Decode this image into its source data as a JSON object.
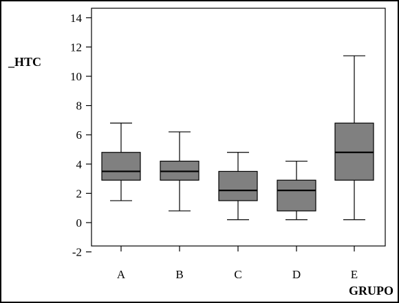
{
  "chart_data": {
    "type": "boxplot",
    "ylabel": "_HTC",
    "xlabel": "GRUPO",
    "ylim": [
      -2,
      14
    ],
    "yticks": [
      -2,
      0,
      2,
      4,
      6,
      8,
      10,
      12,
      14
    ],
    "categories": [
      "A",
      "B",
      "C",
      "D",
      "E"
    ],
    "boxes": [
      {
        "category": "A",
        "min": 1.5,
        "q1": 2.9,
        "median": 3.5,
        "q3": 4.8,
        "max": 6.8
      },
      {
        "category": "B",
        "min": 0.8,
        "q1": 2.9,
        "median": 3.5,
        "q3": 4.2,
        "max": 6.2
      },
      {
        "category": "C",
        "min": 0.2,
        "q1": 1.5,
        "median": 2.2,
        "q3": 3.5,
        "max": 4.8
      },
      {
        "category": "D",
        "min": 0.2,
        "q1": 0.8,
        "median": 2.2,
        "q3": 2.9,
        "max": 4.2
      },
      {
        "category": "E",
        "min": 0.2,
        "q1": 2.9,
        "median": 4.8,
        "q3": 6.8,
        "max": 11.4
      }
    ],
    "box_color": "#808080",
    "grid": false,
    "legend": "none"
  }
}
